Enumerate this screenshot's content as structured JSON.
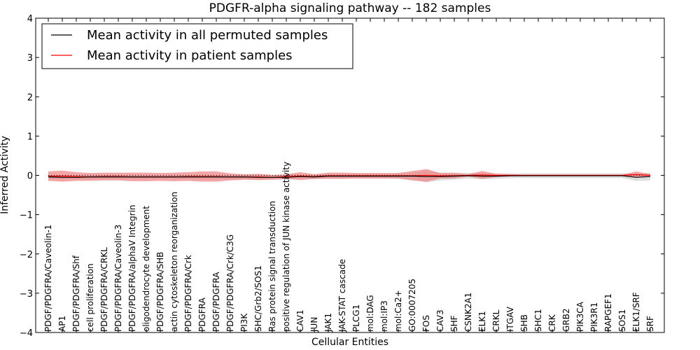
{
  "chart_data": {
    "type": "line",
    "title": "PDGFR-alpha signaling pathway -- 182 samples",
    "xlabel": "Cellular Entities",
    "ylabel": "Inferred Activity",
    "ylim": [
      -4,
      4
    ],
    "yticks": [
      "−4",
      "−3",
      "−2",
      "−1",
      "0",
      "1",
      "2",
      "3",
      "4"
    ],
    "grid": false,
    "legend_position": "top-left",
    "categories": [
      "PDGF/PDGFRA/Caveolin-1",
      "AP1",
      "PDGF/PDGFRA/Shf",
      "cell proliferation",
      "PDGF/PDGFRA/CRKL",
      "PDGF/PDGFRA/Caveolin-3",
      "PDGF/PDGFRA/alphaV Integrin",
      "oligodendrocyte development",
      "PDGF/PDGFRA/SHB",
      "actin cytoskeleton reorganization",
      "PDGF/PDGFRA/Crk",
      "PDGFRA",
      "PDGF/PDGFRA",
      "PDGF/PDGFRA/Crk/C3G",
      "PI3K",
      "SHC/Grb2/SOS1",
      "Ras protein signal transduction",
      "positive regulation of JUN kinase activity",
      "CAV1",
      "JUN",
      "JAK1",
      "JAK-STAT cascade",
      "PLCG1",
      "mol:DAG",
      "mol:IP3",
      "mol:Ca2+",
      "GO:0007205",
      "FOS",
      "CAV3",
      "SHF",
      "CSNK2A1",
      "ELK1",
      "CRKL",
      "ITGAV",
      "SHB",
      "SHC1",
      "CRK",
      "GRB2",
      "PIK3CA",
      "PIK3R1",
      "RAPGEF1",
      "SOS1",
      "ELK1/SRF",
      "SRF"
    ],
    "series": [
      {
        "name": "Mean activity in all permuted samples",
        "color": "#000000",
        "values": [
          -0.04,
          -0.05,
          -0.05,
          -0.04,
          -0.04,
          -0.04,
          -0.04,
          -0.04,
          -0.04,
          -0.04,
          -0.04,
          -0.04,
          -0.04,
          -0.04,
          -0.04,
          -0.05,
          -0.05,
          -0.05,
          -0.03,
          -0.04,
          -0.02,
          -0.02,
          -0.02,
          -0.02,
          -0.02,
          -0.02,
          -0.02,
          -0.03,
          -0.03,
          -0.02,
          -0.01,
          -0.02,
          -0.02,
          -0.01,
          -0.01,
          -0.01,
          -0.01,
          -0.01,
          -0.01,
          -0.01,
          -0.01,
          -0.01,
          -0.05,
          -0.03
        ],
        "band": [
          0.05,
          0.05,
          0.05,
          0.05,
          0.05,
          0.05,
          0.05,
          0.05,
          0.05,
          0.05,
          0.05,
          0.06,
          0.06,
          0.06,
          0.06,
          0.06,
          0.06,
          0.06,
          0.06,
          0.06,
          0.06,
          0.06,
          0.06,
          0.06,
          0.06,
          0.07,
          0.08,
          0.15,
          0.1,
          0.09,
          0.07,
          0.08,
          0.07,
          0.06,
          0.06,
          0.06,
          0.06,
          0.06,
          0.06,
          0.06,
          0.06,
          0.06,
          0.09,
          0.1
        ]
      },
      {
        "name": "Mean activity in patient samples",
        "color": "#ff0000",
        "fill": "#f08080",
        "values": [
          -0.02,
          -0.02,
          -0.03,
          -0.04,
          -0.03,
          -0.03,
          -0.04,
          -0.04,
          -0.04,
          -0.04,
          -0.03,
          -0.03,
          -0.03,
          -0.04,
          -0.04,
          -0.04,
          -0.05,
          -0.03,
          -0.02,
          -0.03,
          -0.01,
          -0.01,
          -0.01,
          -0.01,
          -0.01,
          -0.01,
          -0.01,
          0.0,
          -0.01,
          -0.01,
          0.0,
          0.01,
          0.0,
          0.0,
          0.0,
          0.0,
          0.0,
          0.0,
          0.0,
          0.0,
          0.0,
          0.0,
          0.02,
          0.0
        ],
        "band": [
          0.12,
          0.14,
          0.11,
          0.1,
          0.1,
          0.1,
          0.11,
          0.11,
          0.1,
          0.11,
          0.11,
          0.13,
          0.13,
          0.09,
          0.07,
          0.08,
          0.06,
          0.06,
          0.1,
          0.06,
          0.08,
          0.08,
          0.07,
          0.07,
          0.07,
          0.07,
          0.12,
          0.16,
          0.07,
          0.07,
          0.03,
          0.1,
          0.04,
          0.03,
          0.02,
          0.02,
          0.02,
          0.02,
          0.02,
          0.02,
          0.02,
          0.02,
          0.08,
          0.03
        ]
      }
    ],
    "reference_line": {
      "y": 0,
      "style": "dotted"
    }
  }
}
